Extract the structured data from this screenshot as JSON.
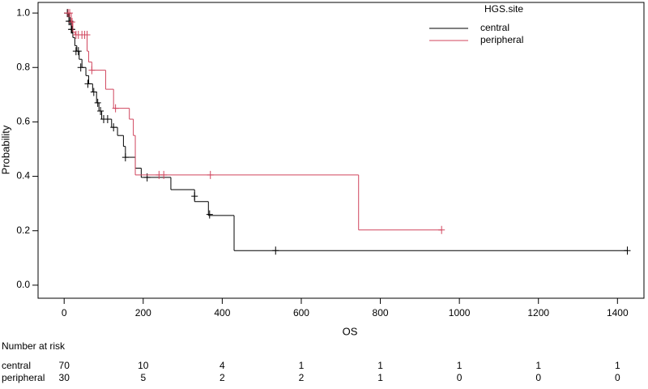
{
  "chart_data": {
    "type": "step",
    "xlabel": "OS",
    "ylabel": "Probability",
    "legend_title": "HGS.site",
    "xlim": [
      -66,
      1467
    ],
    "ylim": [
      -0.048,
      1.039
    ],
    "xticks": [
      0,
      200,
      400,
      600,
      800,
      1000,
      1200,
      1400
    ],
    "yticks": [
      {
        "value": 0,
        "label": "0.0"
      },
      {
        "value": 0.2,
        "label": "0.2"
      },
      {
        "value": 0.4,
        "label": "0.4"
      },
      {
        "value": 0.6,
        "label": "0.6"
      },
      {
        "value": 0.8,
        "label": "0.8"
      },
      {
        "value": 1,
        "label": "1.0"
      }
    ],
    "series": [
      {
        "name": "central",
        "color": "#000000",
        "x": [
          0,
          12,
          18,
          22,
          27,
          32,
          38,
          45,
          55,
          62,
          72,
          82,
          88,
          95,
          120,
          135,
          150,
          155,
          180,
          195,
          270,
          330,
          365,
          430,
          1425
        ],
        "values": [
          1.0,
          0.97,
          0.94,
          0.91,
          0.88,
          0.86,
          0.83,
          0.8,
          0.77,
          0.74,
          0.71,
          0.67,
          0.64,
          0.61,
          0.58,
          0.55,
          0.51,
          0.47,
          0.43,
          0.396,
          0.351,
          0.307,
          0.256,
          0.127,
          0.127
        ],
        "censor_x": [
          8,
          12,
          15,
          18,
          20,
          30,
          36,
          42,
          60,
          75,
          85,
          92,
          100,
          110,
          125,
          155,
          210,
          330,
          368,
          535,
          1425
        ],
        "censor_values": [
          1.0,
          0.97,
          0.97,
          0.94,
          0.94,
          0.86,
          0.86,
          0.8,
          0.74,
          0.71,
          0.67,
          0.64,
          0.61,
          0.61,
          0.58,
          0.47,
          0.396,
          0.327,
          0.26,
          0.127,
          0.127
        ]
      },
      {
        "name": "peripheral",
        "color": "#d0455d",
        "x": [
          0,
          18,
          22,
          28,
          58,
          62,
          70,
          105,
          125,
          165,
          175,
          180,
          745,
          955
        ],
        "values": [
          1.0,
          0.967,
          0.93,
          0.92,
          0.86,
          0.82,
          0.79,
          0.72,
          0.65,
          0.61,
          0.55,
          0.405,
          0.203,
          0.203
        ],
        "censor_x": [
          10,
          14,
          20,
          30,
          36,
          45,
          52,
          58,
          70,
          130,
          240,
          252,
          370,
          955
        ],
        "censor_values": [
          1.0,
          1.0,
          0.967,
          0.92,
          0.92,
          0.92,
          0.92,
          0.92,
          0.79,
          0.65,
          0.405,
          0.405,
          0.405,
          0.203
        ]
      }
    ],
    "risk_table": {
      "title": "Number at risk",
      "rows": [
        {
          "name": "central",
          "counts": [
            70,
            10,
            4,
            1,
            1,
            1,
            1,
            1
          ]
        },
        {
          "name": "peripheral",
          "counts": [
            30,
            5,
            2,
            2,
            1,
            0,
            0,
            0
          ]
        }
      ]
    }
  }
}
